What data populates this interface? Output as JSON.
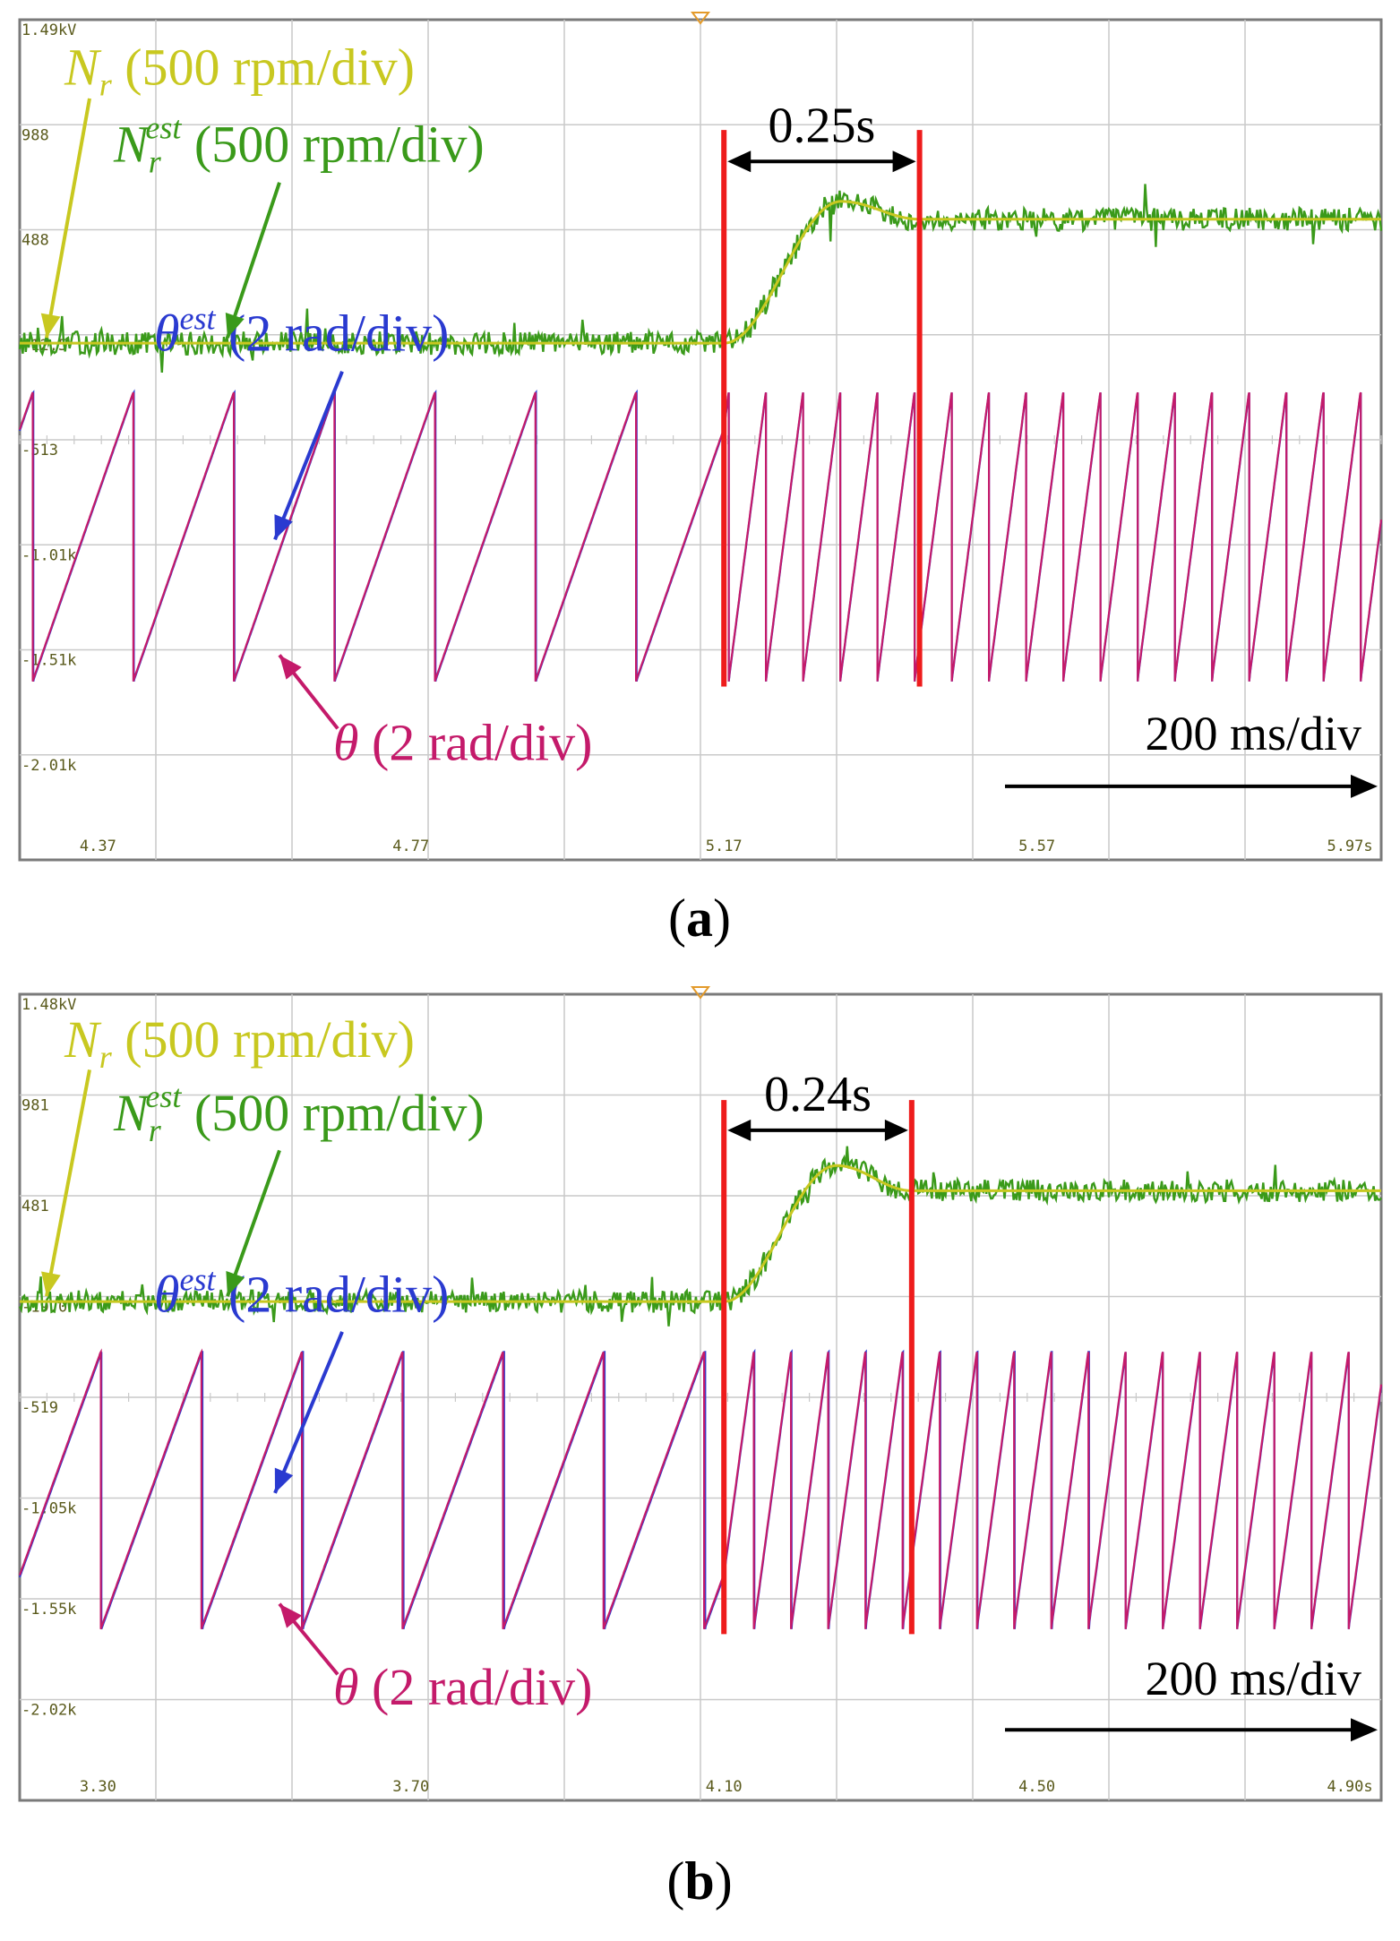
{
  "chart_data": [
    {
      "id": "a",
      "type": "line",
      "title": "",
      "caption": "(a)",
      "caption_letter": "a",
      "xlabel": "",
      "ylabel": "",
      "time_div": "200 ms/div",
      "x_ticks": [
        "4.37",
        "4.77",
        "5.17",
        "5.57",
        "5.97s"
      ],
      "x_tick_values": [
        4.37,
        4.77,
        5.17,
        5.57,
        5.97
      ],
      "y_ticks": [
        "1.49kV",
        "988",
        "488",
        "-12.5",
        "-513",
        "-1.01k",
        "-1.51k",
        "-2.01k"
      ],
      "xlim": [
        4.27,
        6.01
      ],
      "step_time": 5.17,
      "settle_interval": [
        5.17,
        5.42
      ],
      "settle_label": "0.25s",
      "speed_low_div": -0.08,
      "speed_high_div": 1.1,
      "speed_overshoot_div": 1.27,
      "angle_period_low": 0.1285,
      "angle_period_high": 0.0475,
      "angle_phase_offset": 0.112,
      "angle_offset_est": 0.004,
      "labels": {
        "nr_main": "N",
        "nr_sub": "r",
        "nr_div": "(500 rpm/div)",
        "nrest_main": "N",
        "nrest_sub": "r",
        "nrest_sup": "est",
        "nrest_div": "(500 rpm/div)",
        "thetaest_main": "θ",
        "thetaest_sup": "est",
        "thetaest_div": "(2 rad/div)",
        "theta_main": "θ",
        "theta_div": "(2 rad/div)"
      },
      "series": [
        {
          "name": "N_r",
          "label": "N_r (500 rpm/div)",
          "color": "#c8c820"
        },
        {
          "name": "N_r^est",
          "label": "N_r^est (500 rpm/div)",
          "color": "#3a9a1a"
        },
        {
          "name": "theta^est",
          "label": "θ^est (2 rad/div)",
          "color": "#2a3ad0"
        },
        {
          "name": "theta",
          "label": "θ (2 rad/div)",
          "color": "#c41a6a"
        }
      ]
    },
    {
      "id": "b",
      "type": "line",
      "title": "",
      "caption": "(b)",
      "caption_letter": "b",
      "xlabel": "",
      "ylabel": "",
      "time_div": "200 ms/div",
      "x_ticks": [
        "3.30",
        "3.70",
        "4.10",
        "4.50",
        "4.90s"
      ],
      "x_tick_values": [
        3.3,
        3.7,
        4.1,
        4.5,
        4.9
      ],
      "y_ticks": [
        "1.48kV",
        "981",
        "481",
        "-19.0",
        "-519",
        "-1.05k",
        "-1.55k",
        "-2.02k"
      ],
      "xlim": [
        3.2,
        4.94
      ],
      "step_time": 4.1,
      "settle_interval": [
        4.1,
        4.34
      ],
      "settle_label": "0.24s",
      "speed_low_div": -0.05,
      "speed_high_div": 1.05,
      "speed_overshoot_div": 1.3,
      "angle_period_low": 0.1285,
      "angle_period_high": 0.0475,
      "angle_phase_offset": 0.025,
      "angle_offset_est": 0.007,
      "labels": {
        "nr_main": "N",
        "nr_sub": "r",
        "nr_div": "(500 rpm/div)",
        "nrest_main": "N",
        "nrest_sub": "r",
        "nrest_sup": "est",
        "nrest_div": "(500 rpm/div)",
        "thetaest_main": "θ",
        "thetaest_sup": "est",
        "thetaest_div": "(2 rad/div)",
        "theta_main": "θ",
        "theta_div": "(2 rad/div)"
      },
      "series": [
        {
          "name": "N_r",
          "label": "N_r (500 rpm/div)",
          "color": "#c8c820"
        },
        {
          "name": "N_r^est",
          "label": "N_r^est (500 rpm/div)",
          "color": "#3a9a1a"
        },
        {
          "name": "theta^est",
          "label": "θ^est (2 rad/div)",
          "color": "#2a3ad0"
        },
        {
          "name": "theta",
          "label": "θ (2 rad/div)",
          "color": "#c41a6a"
        }
      ]
    }
  ],
  "colors": {
    "grid": "#c9c9c9",
    "frame": "#7a7a7a",
    "marker": "#ee1c1c",
    "annotation": "#000000",
    "nr": "#c8c820",
    "nrest": "#3a9a1a",
    "thetaest": "#2a3ad0",
    "theta": "#c41a6a"
  }
}
